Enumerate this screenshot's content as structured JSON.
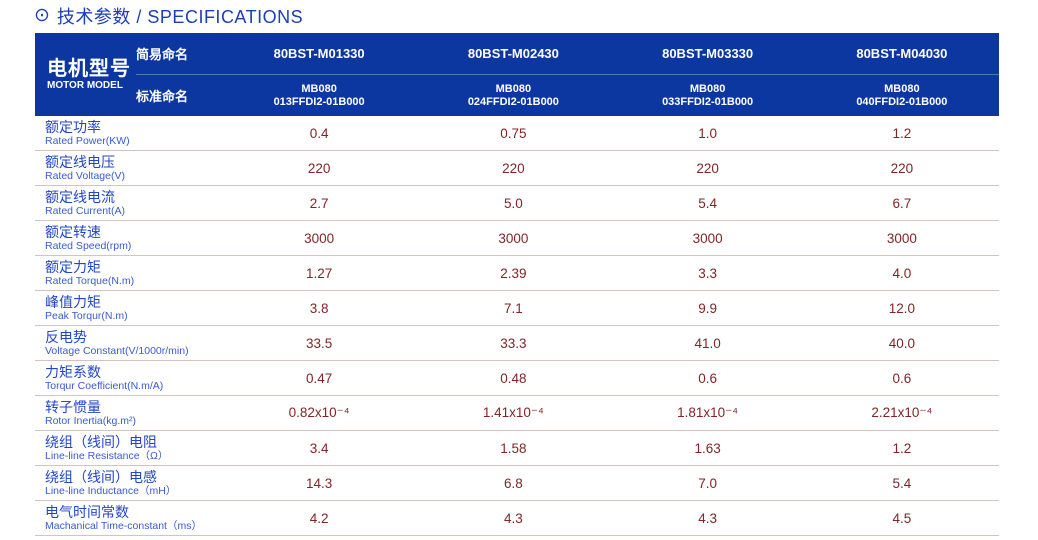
{
  "page": {
    "icon": "⊙",
    "title": "技术参数 / SPECIFICATIONS"
  },
  "colors": {
    "header_bg": "#0c36a0",
    "title_blue": "#1c3fb4",
    "label_blue": "#2346c8",
    "sublabel_blue": "#3a5ad2",
    "value_maroon": "#7f2525",
    "row_line": "#d5c3c3"
  },
  "table": {
    "header": {
      "motor_model_cn": "电机型号",
      "motor_model_en": "MOTOR MODEL",
      "simple_name_label": "简易命名",
      "standard_name_label": "标准命名",
      "simple_models": [
        "80BST-M01330",
        "80BST-M02430",
        "80BST-M03330",
        "80BST-M04030"
      ],
      "standard_models": [
        {
          "line1": "MB080",
          "line2": "013FFDI2-01B000"
        },
        {
          "line1": "MB080",
          "line2": "024FFDI2-01B000"
        },
        {
          "line1": "MB080",
          "line2": "033FFDI2-01B000"
        },
        {
          "line1": "MB080",
          "line2": "040FFDI2-01B000"
        }
      ]
    },
    "rows": [
      {
        "cn": "额定功率",
        "en": "Rated Power(KW)",
        "values": [
          "0.4",
          "0.75",
          "1.0",
          "1.2"
        ]
      },
      {
        "cn": "额定线电压",
        "en": "Rated Voltage(V)",
        "values": [
          "220",
          "220",
          "220",
          "220"
        ]
      },
      {
        "cn": "额定线电流",
        "en": "Rated Current(A)",
        "values": [
          "2.7",
          "5.0",
          "5.4",
          "6.7"
        ]
      },
      {
        "cn": "额定转速",
        "en": "Rated Speed(rpm)",
        "values": [
          "3000",
          "3000",
          "3000",
          "3000"
        ]
      },
      {
        "cn": "额定力矩",
        "en": "Rated Torque(N.m)",
        "values": [
          "1.27",
          "2.39",
          "3.3",
          "4.0"
        ]
      },
      {
        "cn": "峰值力矩",
        "en": "Peak Torqur(N.m)",
        "values": [
          "3.8",
          "7.1",
          "9.9",
          "12.0"
        ]
      },
      {
        "cn": "反电势",
        "en": "Voltage Constant(V/1000r/min)",
        "values": [
          "33.5",
          "33.3",
          "41.0",
          "40.0"
        ]
      },
      {
        "cn": "力矩系数",
        "en": "Torqur Coefficient(N.m/A)",
        "values": [
          "0.47",
          "0.48",
          "0.6",
          "0.6"
        ]
      },
      {
        "cn": "转子惯量",
        "en": "Rotor Inertia(kg.m²)",
        "values": [
          "0.82x10⁻⁴",
          "1.41x10⁻⁴",
          "1.81x10⁻⁴",
          "2.21x10⁻⁴"
        ]
      },
      {
        "cn": "绕组（线间）电阻",
        "en": "Line-line Resistance（Ω）",
        "values": [
          "3.4",
          "1.58",
          "1.63",
          "1.2"
        ]
      },
      {
        "cn": "绕组（线间）电感",
        "en": "Line-line Inductance（mH）",
        "values": [
          "14.3",
          "6.8",
          "7.0",
          "5.4"
        ]
      },
      {
        "cn": "电气时间常数",
        "en": "Machanical Time-constant（ms）",
        "values": [
          "4.2",
          "4.3",
          "4.3",
          "4.5"
        ]
      }
    ]
  }
}
